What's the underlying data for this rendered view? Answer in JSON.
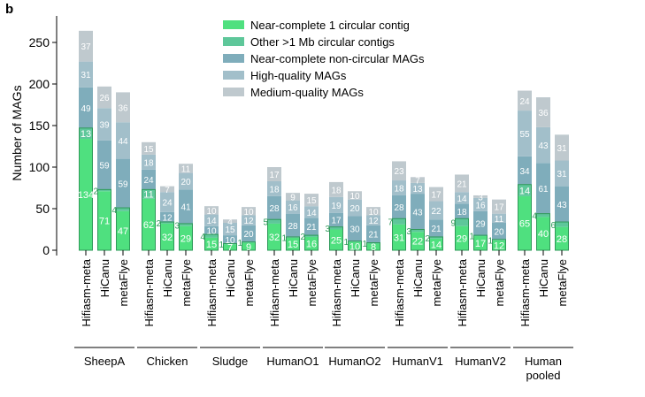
{
  "panel_label": "b",
  "chart_data": {
    "type": "bar",
    "stacked": true,
    "title": "",
    "xlabel": "",
    "ylabel": "Number of MAGs",
    "ylim": [
      0,
      275
    ],
    "yticks": [
      0,
      50,
      100,
      150,
      200,
      250
    ],
    "grid": false,
    "legend_position": "top-center",
    "colors": {
      "near_complete_circular": "#4fe07f",
      "other_circular": "#5ec79a",
      "near_complete_noncircular": "#7fadbb",
      "high_quality": "#a2bfca",
      "medium_quality": "#bfc9ce",
      "circular_edge": "#2f9a5a"
    },
    "series": [
      {
        "name": "Near-complete 1 circular contig",
        "key": "near_complete_circular"
      },
      {
        "name": "Other >1 Mb circular contigs",
        "key": "other_circular"
      },
      {
        "name": "Near-complete non-circular MAGs",
        "key": "near_complete_noncircular"
      },
      {
        "name": "High-quality MAGs",
        "key": "high_quality"
      },
      {
        "name": "Medium-quality MAGs",
        "key": "medium_quality"
      }
    ],
    "groups": [
      {
        "name": "SheepA",
        "bars": [
          {
            "assembler": "Hifiasm-meta",
            "values": [
              134,
              13,
              49,
              31,
              37
            ]
          },
          {
            "assembler": "HiCanu",
            "values": [
              71,
              2,
              59,
              39,
              26
            ]
          },
          {
            "assembler": "metaFlye",
            "values": [
              47,
              4,
              59,
              44,
              36
            ]
          }
        ]
      },
      {
        "name": "Chicken",
        "bars": [
          {
            "assembler": "Hifiasm-meta",
            "values": [
              62,
              11,
              24,
              18,
              15
            ]
          },
          {
            "assembler": "HiCanu",
            "values": [
              32,
              2,
              12,
              24,
              7
            ]
          },
          {
            "assembler": "metaFlye",
            "values": [
              29,
              3,
              41,
              20,
              11
            ]
          }
        ]
      },
      {
        "name": "Sludge",
        "bars": [
          {
            "assembler": "Hifiasm-meta",
            "values": [
              15,
              4,
              10,
              14,
              10
            ]
          },
          {
            "assembler": "HiCanu",
            "values": [
              7,
              1,
              10,
              15,
              4
            ]
          },
          {
            "assembler": "metaFlye",
            "values": [
              9,
              1,
              20,
              12,
              10
            ]
          }
        ]
      },
      {
        "name": "HumanO1",
        "bars": [
          {
            "assembler": "Hifiasm-meta",
            "values": [
              32,
              5,
              28,
              18,
              17
            ]
          },
          {
            "assembler": "HiCanu",
            "values": [
              15,
              1,
              28,
              16,
              9
            ]
          },
          {
            "assembler": "metaFlye",
            "values": [
              16,
              2,
              21,
              14,
              15
            ]
          }
        ]
      },
      {
        "name": "HumanO2",
        "bars": [
          {
            "assembler": "Hifiasm-meta",
            "values": [
              25,
              3,
              17,
              19,
              18
            ]
          },
          {
            "assembler": "HiCanu",
            "values": [
              10,
              1,
              30,
              20,
              10
            ]
          },
          {
            "assembler": "metaFlye",
            "values": [
              8,
              1,
              21,
              12,
              10
            ]
          }
        ]
      },
      {
        "name": "HumanV1",
        "bars": [
          {
            "assembler": "Hifiasm-meta",
            "values": [
              31,
              7,
              28,
              18,
              23
            ]
          },
          {
            "assembler": "HiCanu",
            "values": [
              22,
              3,
              43,
              13,
              7
            ]
          },
          {
            "assembler": "metaFlye",
            "values": [
              14,
              2,
              21,
              22,
              17
            ]
          }
        ]
      },
      {
        "name": "HumanV2",
        "bars": [
          {
            "assembler": "Hifiasm-meta",
            "values": [
              29,
              9,
              18,
              14,
              21
            ]
          },
          {
            "assembler": "HiCanu",
            "values": [
              17,
              1,
              29,
              16,
              3
            ]
          },
          {
            "assembler": "metaFlye",
            "values": [
              12,
              1,
              20,
              11,
              17
            ]
          }
        ]
      },
      {
        "name": "Human pooled",
        "bars": [
          {
            "assembler": "Hifiasm-meta",
            "values": [
              65,
              14,
              34,
              55,
              24
            ]
          },
          {
            "assembler": "HiCanu",
            "values": [
              40,
              4,
              61,
              43,
              36
            ]
          },
          {
            "assembler": "metaFlye",
            "values": [
              28,
              6,
              43,
              31,
              31
            ]
          }
        ]
      }
    ]
  }
}
